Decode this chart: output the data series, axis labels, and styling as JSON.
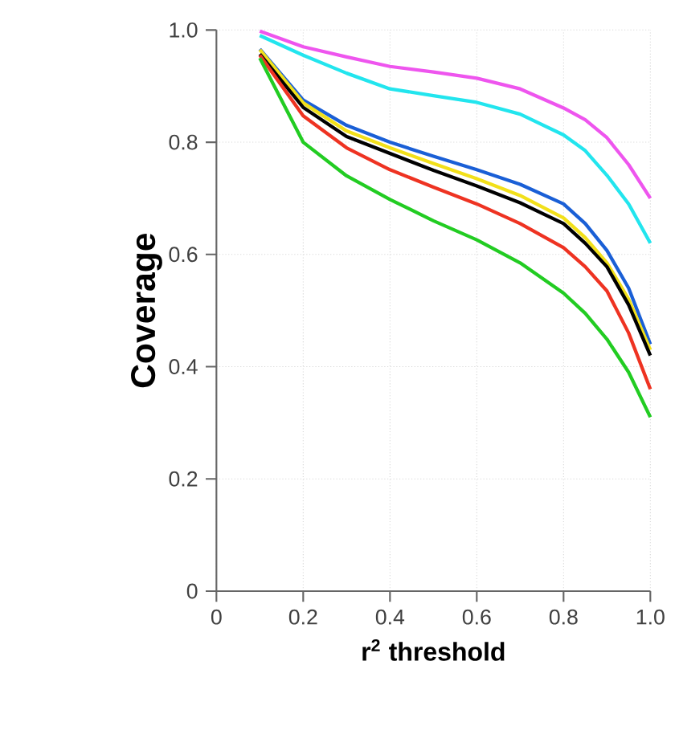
{
  "chart_data": {
    "type": "line",
    "xlabel": "r$^{2}$ threshold",
    "ylabel": "Coverage",
    "xlim": [
      0,
      1
    ],
    "ylim": [
      0,
      1
    ],
    "xticks": [
      0,
      0.2,
      0.4,
      0.6,
      0.8,
      {
        "value": 1,
        "label": "1.0"
      }
    ],
    "yticks": [
      0,
      0.2,
      0.4,
      0.6,
      0.8,
      {
        "value": 1,
        "label": "1.0"
      }
    ],
    "grid": true,
    "line_style": "solid",
    "marker": "none",
    "x": [
      0.1,
      0.2,
      0.3,
      0.4,
      0.5,
      0.6,
      0.7,
      0.8,
      0.85,
      0.9,
      0.95,
      1.0
    ],
    "series": [
      {
        "color": "#ee55ee",
        "values": [
          0.998,
          0.97,
          0.952,
          0.935,
          0.925,
          0.914,
          0.895,
          0.861,
          0.84,
          0.808,
          0.76,
          0.7
        ]
      },
      {
        "color": "#22e5ee",
        "values": [
          0.99,
          0.955,
          0.923,
          0.895,
          0.883,
          0.871,
          0.85,
          0.813,
          0.785,
          0.741,
          0.69,
          0.62
        ]
      },
      {
        "color": "#1a5fd6",
        "values": [
          0.966,
          0.875,
          0.83,
          0.8,
          0.775,
          0.751,
          0.725,
          0.69,
          0.655,
          0.607,
          0.54,
          0.44
        ]
      },
      {
        "color": "#f2e01a",
        "values": [
          0.965,
          0.87,
          0.82,
          0.79,
          0.762,
          0.735,
          0.705,
          0.665,
          0.63,
          0.585,
          0.52,
          0.43
        ]
      },
      {
        "color": "#000000",
        "values": [
          0.957,
          0.862,
          0.81,
          0.78,
          0.75,
          0.722,
          0.692,
          0.655,
          0.62,
          0.578,
          0.51,
          0.42
        ]
      },
      {
        "color": "#ee3322",
        "values": [
          0.955,
          0.847,
          0.79,
          0.751,
          0.72,
          0.69,
          0.655,
          0.612,
          0.578,
          0.535,
          0.46,
          0.36
        ]
      },
      {
        "color": "#22cc22",
        "values": [
          0.95,
          0.8,
          0.74,
          0.698,
          0.66,
          0.626,
          0.585,
          0.531,
          0.495,
          0.449,
          0.39,
          0.31
        ]
      }
    ]
  }
}
